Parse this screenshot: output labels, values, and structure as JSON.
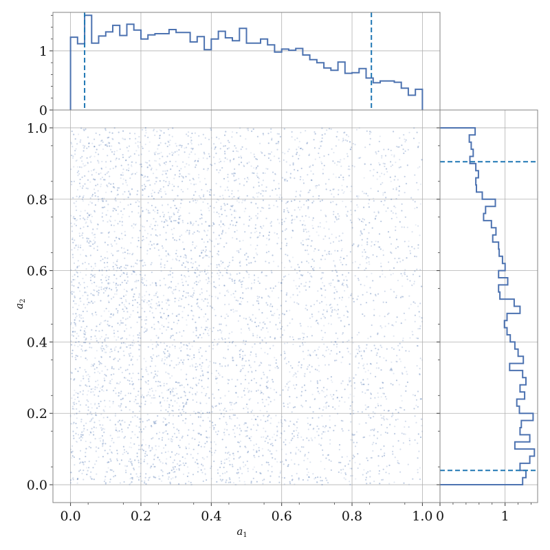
{
  "chart_data": {
    "type": "scatter",
    "xlabel": "a",
    "xlabel_sub": "1",
    "ylabel": "a",
    "ylabel_sub": "2",
    "xlim": [
      -0.05,
      1.05
    ],
    "ylim": [
      -0.05,
      1.05
    ],
    "x_ticks": [
      "0.0",
      "0.2",
      "0.4",
      "0.6",
      "0.8",
      "1.0"
    ],
    "y_ticks": [
      "0.0",
      "0.2",
      "0.4",
      "0.6",
      "0.8",
      "1.0"
    ],
    "grid": true,
    "scatter": {
      "n_points_approx": 5000,
      "color": "#4c72b0",
      "x_range": [
        0.0,
        1.0
      ],
      "y_range": [
        0.0,
        1.0
      ],
      "note": "dense cloud of uniformly spread samples, slightly denser toward small a1"
    },
    "marginal_x": {
      "type": "step-histogram",
      "color": "#4c72b0",
      "ylim": [
        0,
        1.65
      ],
      "y_ticks": [
        "0",
        "1"
      ],
      "bin_edges": [
        0.0,
        0.02,
        0.04,
        0.06,
        0.08,
        0.1,
        0.12,
        0.14,
        0.16,
        0.18,
        0.2,
        0.22,
        0.24,
        0.26,
        0.28,
        0.3,
        0.32,
        0.34,
        0.36,
        0.38,
        0.4,
        0.42,
        0.44,
        0.46,
        0.48,
        0.5,
        0.52,
        0.54,
        0.56,
        0.58,
        0.6,
        0.62,
        0.64,
        0.66,
        0.68,
        0.7,
        0.72,
        0.74,
        0.76,
        0.78,
        0.8,
        0.82,
        0.84,
        0.86,
        0.88,
        0.9,
        0.92,
        0.94,
        0.96,
        0.98,
        1.0
      ],
      "density": [
        1.23,
        1.12,
        1.6,
        1.13,
        1.25,
        1.32,
        1.43,
        1.26,
        1.45,
        1.35,
        1.2,
        1.27,
        1.29,
        1.29,
        1.36,
        1.31,
        1.31,
        1.15,
        1.24,
        1.02,
        1.2,
        1.33,
        1.22,
        1.17,
        1.38,
        1.13,
        1.13,
        1.2,
        1.1,
        0.98,
        1.03,
        1.01,
        1.04,
        0.93,
        0.85,
        0.8,
        0.71,
        0.67,
        0.81,
        0.62,
        0.63,
        0.7,
        0.54,
        0.46,
        0.49,
        0.49,
        0.47,
        0.37,
        0.25,
        0.35,
        0.26
      ],
      "quantile_lines": [
        0.04,
        0.855
      ],
      "quantile_color": "#1f77b4"
    },
    "marginal_y": {
      "type": "step-histogram",
      "color": "#4c72b0",
      "xlim": [
        0,
        1.5
      ],
      "x_ticks": [
        "0",
        "1"
      ],
      "bin_edges": [
        0.0,
        0.02,
        0.04,
        0.06,
        0.08,
        0.1,
        0.12,
        0.14,
        0.16,
        0.18,
        0.2,
        0.22,
        0.24,
        0.26,
        0.28,
        0.3,
        0.32,
        0.34,
        0.36,
        0.38,
        0.4,
        0.42,
        0.44,
        0.46,
        0.48,
        0.5,
        0.52,
        0.54,
        0.56,
        0.58,
        0.6,
        0.62,
        0.64,
        0.66,
        0.68,
        0.7,
        0.72,
        0.74,
        0.76,
        0.78,
        0.8,
        0.82,
        0.84,
        0.86,
        0.88,
        0.9,
        0.92,
        0.94,
        0.96,
        0.98,
        1.0
      ],
      "density": [
        1.27,
        1.32,
        1.23,
        1.38,
        1.45,
        1.15,
        1.38,
        1.23,
        1.25,
        1.43,
        1.22,
        1.18,
        1.3,
        1.23,
        1.32,
        1.27,
        1.07,
        1.28,
        1.2,
        1.15,
        1.08,
        1.03,
        0.99,
        1.03,
        1.23,
        1.14,
        0.92,
        0.9,
        1.04,
        0.9,
        1.0,
        0.96,
        0.91,
        0.9,
        0.81,
        0.86,
        0.79,
        0.67,
        0.7,
        0.85,
        0.65,
        0.56,
        0.55,
        0.59,
        0.55,
        0.46,
        0.51,
        0.48,
        0.45,
        0.54,
        0.0
      ],
      "quantile_lines": [
        0.04,
        0.905
      ],
      "quantile_color": "#1f77b4"
    }
  }
}
